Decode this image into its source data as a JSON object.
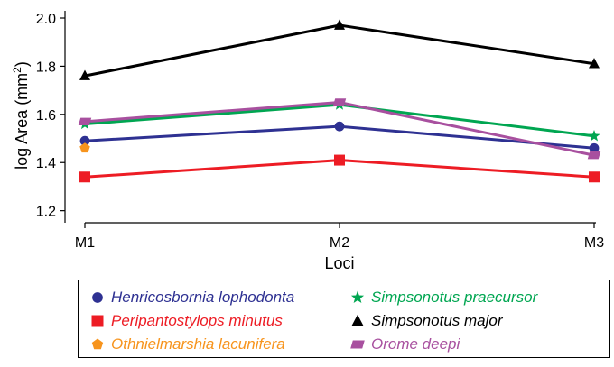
{
  "chart_data": {
    "type": "line",
    "categories": [
      "M1",
      "M2",
      "M3"
    ],
    "xlabel": "Loci",
    "ylabel_main": "log Area (mm",
    "ylabel_sup": "2",
    "ylabel_close": ")",
    "ylim": [
      1.15,
      2.03
    ],
    "yticks": [
      1.2,
      1.4,
      1.6,
      1.8,
      2.0
    ],
    "ytick_labels": [
      "1.2",
      "1.4",
      "1.6",
      "1.8",
      "2.0"
    ],
    "grid": false,
    "legend_position": "bottom",
    "series": [
      {
        "name": "Henricosbornia lophodonta",
        "values": [
          1.49,
          1.55,
          1.46
        ],
        "color": "#2e3192",
        "marker": "circle"
      },
      {
        "name": "Peripantostylops minutus",
        "values": [
          1.34,
          1.41,
          1.34
        ],
        "color": "#ed1c24",
        "marker": "square"
      },
      {
        "name": "Othnielmarshia lacunifera",
        "values": [
          1.46,
          null,
          null
        ],
        "color": "#f7941d",
        "marker": "pentagon"
      },
      {
        "name": "Simpsonotus praecursor",
        "values": [
          1.56,
          1.64,
          1.51
        ],
        "color": "#00a651",
        "marker": "star"
      },
      {
        "name": "Simpsonotus major",
        "values": [
          1.76,
          1.97,
          1.81
        ],
        "color": "#000000",
        "marker": "triangle"
      },
      {
        "name": "Orome deepi",
        "values": [
          1.57,
          1.65,
          1.43
        ],
        "color": "#a8509f",
        "marker": "parallelogram"
      }
    ]
  }
}
